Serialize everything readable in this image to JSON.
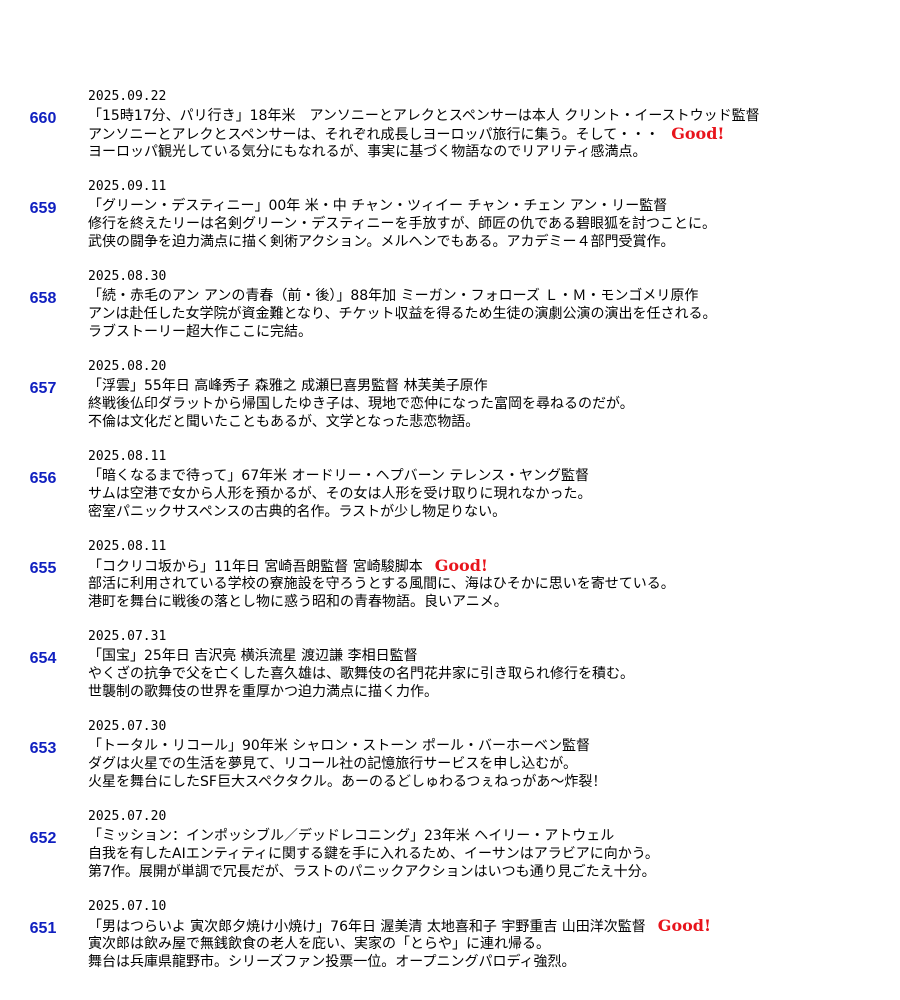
{
  "colors": {
    "number": "#1020c0",
    "good": "#e8141c",
    "text": "#000000"
  },
  "entries": [
    {
      "number": "660",
      "date": "2025.09.22",
      "line1": "「15時17分、パリ行き」18年米　アンソニーとアレクとスペンサーは本人 クリント・イーストウッド監督",
      "line2": "アンソニーとアレクとスペンサーは、それぞれ成長しヨーロッパ旅行に集う。そして・・・",
      "line3": "ヨーロッパ観光している気分にもなれるが、事実に基づく物語なのでリアリティ感満点。",
      "good": "Good!",
      "good_line": 2
    },
    {
      "number": "659",
      "date": "2025.09.11",
      "line1": "「グリーン・デスティニー」00年 米・中 チャン・ツィイー チャン・チェン アン・リー監督",
      "line2": "修行を終えたリーは名剣グリーン・デスティニーを手放すが、師匠の仇である碧眼狐を討つことに。",
      "line3": "武侠の闘争を迫力満点に描く剣術アクション。メルヘンでもある。アカデミー４部門受賞作。"
    },
    {
      "number": "658",
      "date": "2025.08.30",
      "line1": "「続・赤毛のアン アンの青春（前・後）」88年加 ミーガン・フォローズ Ｌ・Ｍ・モンゴメリ原作",
      "line2": "アンは赴任した女学院が資金難となり、チケット収益を得るため生徒の演劇公演の演出を任される。",
      "line3": "ラブストーリー超大作ここに完結。"
    },
    {
      "number": "657",
      "date": "2025.08.20",
      "line1": "「浮雲」55年日 高峰秀子 森雅之 成瀬巳喜男監督 林芙美子原作",
      "line2": "終戦後仏印ダラットから帰国したゆき子は、現地で恋仲になった富岡を尋ねるのだが。",
      "line3": "不倫は文化だと聞いたこともあるが、文学となった悲恋物語。"
    },
    {
      "number": "656",
      "date": "2025.08.11",
      "line1": "「暗くなるまで待って」67年米 オードリー・ヘプバーン テレンス・ヤング監督",
      "line2": "サムは空港で女から人形を預かるが、その女は人形を受け取りに現れなかった。",
      "line3": "密室パニックサスペンスの古典的名作。ラストが少し物足りない。"
    },
    {
      "number": "655",
      "date": "2025.08.11",
      "line1": "「コクリコ坂から」11年日 宮崎吾朗監督 宮崎駿脚本",
      "line2": "部活に利用されている学校の寮施設を守ろうとする風間に、海はひそかに思いを寄せている。",
      "line3": "港町を舞台に戦後の落とし物に惑う昭和の青春物語。良いアニメ。",
      "good": "Good!",
      "good_line": 1
    },
    {
      "number": "654",
      "date": "2025.07.31",
      "line1": "「国宝」25年日 吉沢亮 横浜流星 渡辺謙 李相日監督",
      "line2": "やくざの抗争で父を亡くした喜久雄は、歌舞伎の名門花井家に引き取られ修行を積む。",
      "line3": "世襲制の歌舞伎の世界を重厚かつ迫力満点に描く力作。"
    },
    {
      "number": "653",
      "date": "2025.07.30",
      "line1": "「トータル・リコール」90年米 シャロン・ストーン ポール・バーホーベン監督",
      "line2": "ダグは火星での生活を夢見て、リコール社の記憶旅行サービスを申し込むが。",
      "line3": "火星を舞台にしたSF巨大スペクタクル。あーのるどしゅわるつぇねっがあ～炸裂！"
    },
    {
      "number": "652",
      "date": "2025.07.20",
      "line1": "「ミッション：インポッシブル／デッドレコニング」23年米 ヘイリー・アトウェル",
      "line2": "自我を有したAIエンティティに関する鍵を手に入れるため、イーサンはアラビアに向かう。",
      "line3": "第7作。展開が単調で冗長だが、ラストのパニックアクションはいつも通り見ごたえ十分。"
    },
    {
      "number": "651",
      "date": "2025.07.10",
      "line1": "「男はつらいよ 寅次郎夕焼け小焼け」76年日 渥美清 太地喜和子 宇野重吉 山田洋次監督",
      "line2": "寅次郎は飲み屋で無銭飲食の老人を庇い、実家の「とらや」に連れ帰る。",
      "line3": "舞台は兵庫県龍野市。シリーズファン投票一位。オープニングパロディ強烈。",
      "good": "Good!",
      "good_line": 1
    }
  ]
}
